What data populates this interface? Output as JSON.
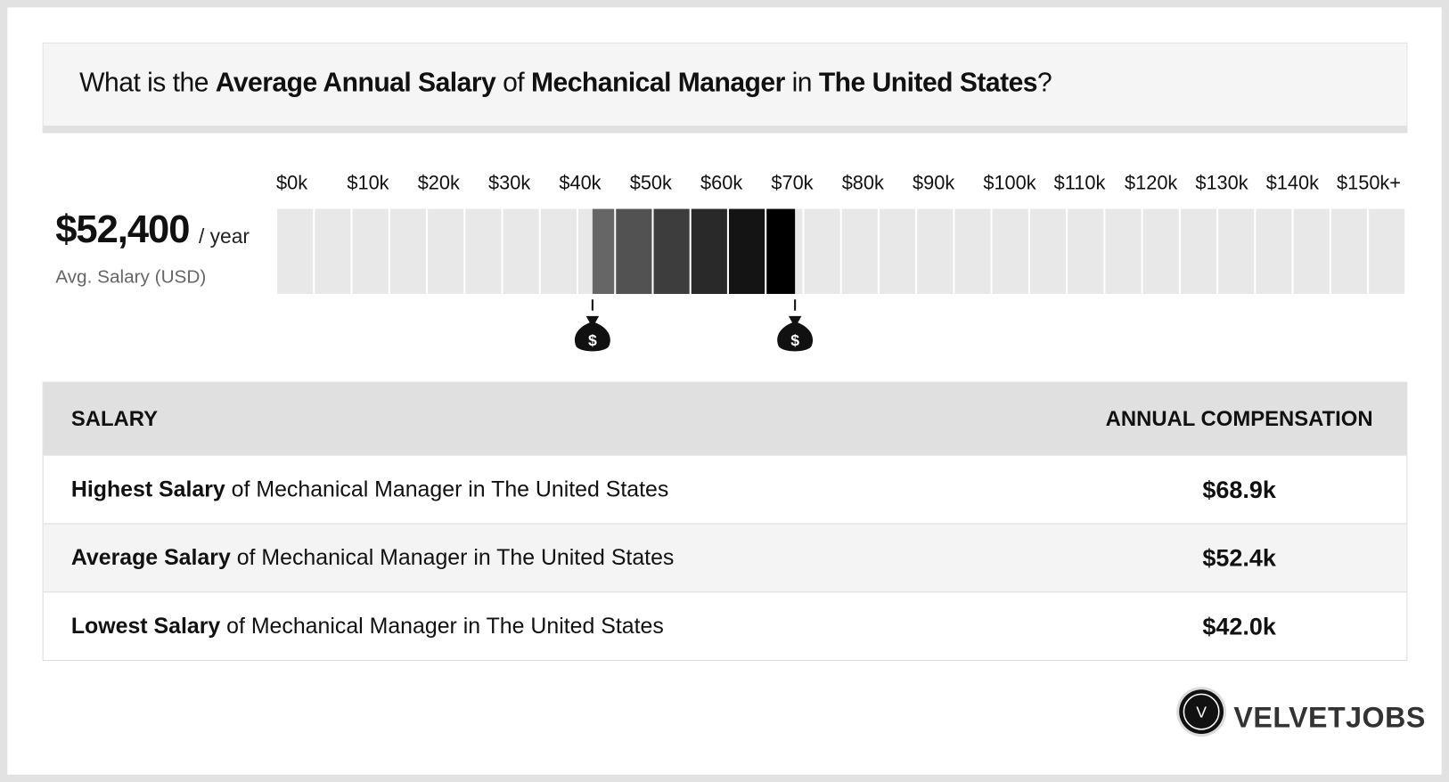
{
  "header": {
    "title_parts": [
      {
        "text": "What is the ",
        "bold": false
      },
      {
        "text": "Average Annual Salary",
        "bold": true
      },
      {
        "text": " of ",
        "bold": false
      },
      {
        "text": "Mechanical Manager",
        "bold": true
      },
      {
        "text": " in ",
        "bold": false
      },
      {
        "text": "The United States",
        "bold": true
      },
      {
        "text": "?",
        "bold": false
      }
    ]
  },
  "summary": {
    "value": "$52,400",
    "unit": "/ year",
    "caption": "Avg. Salary (USD)"
  },
  "range": {
    "ticks": [
      {
        "value": 0,
        "label": "$0k"
      },
      {
        "value": 10,
        "label": "$10k"
      },
      {
        "value": 20,
        "label": "$20k"
      },
      {
        "value": 30,
        "label": "$30k"
      },
      {
        "value": 40,
        "label": "$40k"
      },
      {
        "value": 50,
        "label": "$50k"
      },
      {
        "value": 60,
        "label": "$60k"
      },
      {
        "value": 70,
        "label": "$70k"
      },
      {
        "value": 80,
        "label": "$80k"
      },
      {
        "value": 90,
        "label": "$90k"
      },
      {
        "value": 100,
        "label": "$100k"
      },
      {
        "value": 110,
        "label": "$110k"
      },
      {
        "value": 120,
        "label": "$120k"
      },
      {
        "value": 130,
        "label": "$130k"
      },
      {
        "value": 140,
        "label": "$140k"
      },
      {
        "value": 150,
        "label": "$150k+"
      }
    ],
    "marker_symbol": "$"
  },
  "table": {
    "header": [
      "SALARY",
      "ANNUAL COMPENSATION"
    ],
    "rows": [
      {
        "bold": "Highest Salary",
        "text": " of Mechanical Manager in The United States",
        "value": 68.9,
        "value_label": "$68.9k"
      },
      {
        "bold": "Average Salary",
        "text": " of Mechanical Manager in The United States",
        "value": 52.4,
        "value_label": "$52.4k"
      },
      {
        "bold": "Lowest Salary",
        "text": " of Mechanical Manager in The United States",
        "value": 42.0,
        "value_label": "$42.0k"
      }
    ]
  },
  "logo": {
    "letter": "V",
    "name": "VELVETJOBS"
  }
}
